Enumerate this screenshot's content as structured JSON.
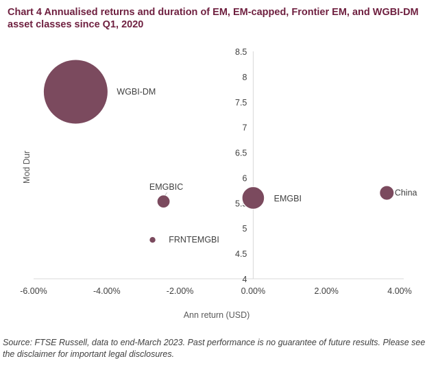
{
  "chart_data": {
    "type": "scatter",
    "subtype": "bubble",
    "title": "Chart 4 Annualised returns and duration of EM, EM-capped, Frontier EM, and WGBI-DM asset classes since Q1, 2020",
    "xlabel": "Ann return (USD)",
    "ylabel": "Mod Dur",
    "xlim": [
      -6.0,
      4.0
    ],
    "ylim": [
      4,
      8.5
    ],
    "x_ticks": [
      "-6.00%",
      "-4.00%",
      "-2.00%",
      "0.00%",
      "2.00%",
      "4.00%"
    ],
    "y_ticks": [
      "4",
      "4.5",
      "5",
      "5.5",
      "6",
      "6.5",
      "7",
      "7.5",
      "8",
      "8.5"
    ],
    "grid": false,
    "color": "#7b4a5e",
    "points": [
      {
        "label": "WGBI-DM",
        "x": -4.85,
        "y": 7.7,
        "size": 100
      },
      {
        "label": "EMGBIC",
        "x": -2.45,
        "y": 5.53,
        "size": 4
      },
      {
        "label": "FRNTEMGBI",
        "x": -2.75,
        "y": 4.77,
        "size": 1
      },
      {
        "label": "EMGBI",
        "x": 0.0,
        "y": 5.6,
        "size": 12
      },
      {
        "label": "China",
        "x": 3.65,
        "y": 5.7,
        "size": 5
      }
    ]
  },
  "footer": {
    "source": "Source: FTSE Russell, data to end-March 2023. Past performance is no guarantee of future results. Please see the disclaimer for important legal disclosures."
  }
}
